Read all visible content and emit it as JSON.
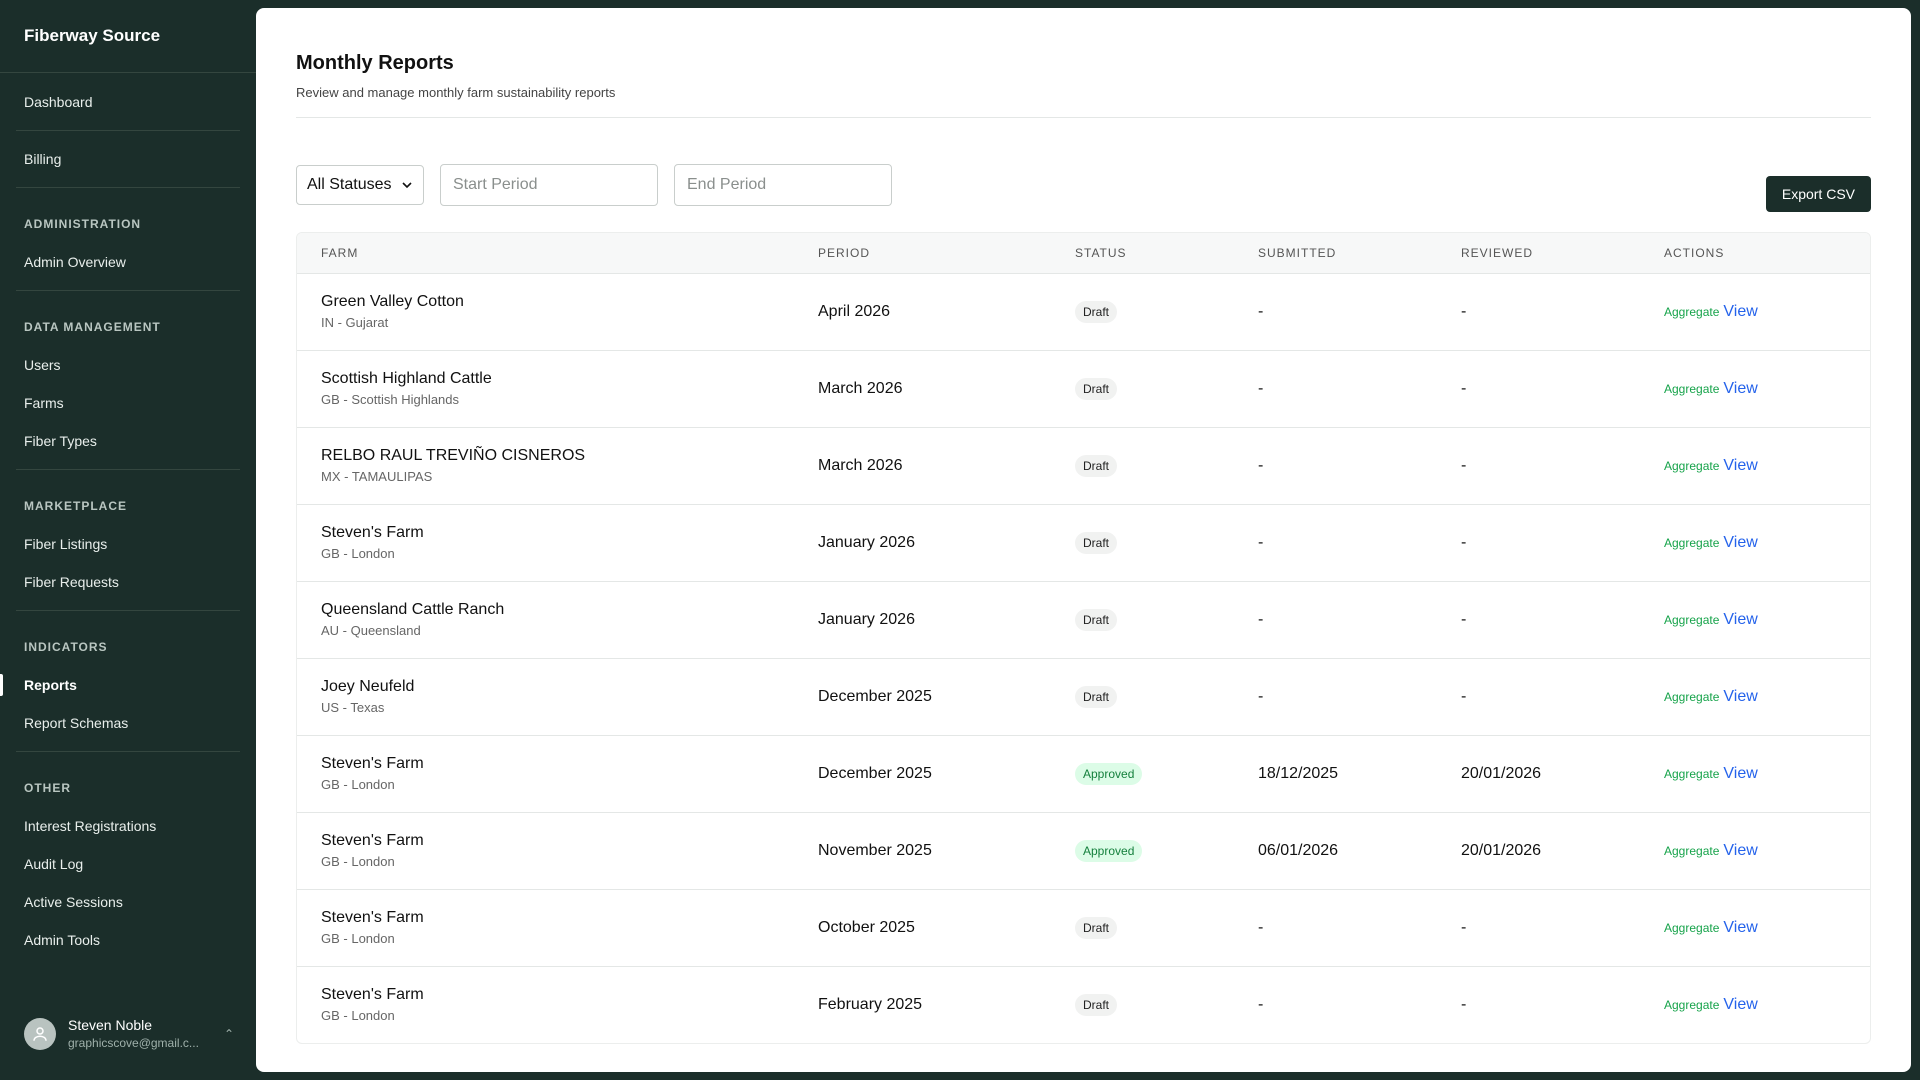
{
  "brand": "Fiberway Source",
  "nav": {
    "top": [
      {
        "label": "Dashboard"
      },
      {
        "label": "Billing"
      }
    ],
    "sections": [
      {
        "heading": "ADMINISTRATION",
        "items": [
          {
            "label": "Admin Overview"
          }
        ]
      },
      {
        "heading": "DATA MANAGEMENT",
        "items": [
          {
            "label": "Users"
          },
          {
            "label": "Farms"
          },
          {
            "label": "Fiber Types"
          }
        ]
      },
      {
        "heading": "MARKETPLACE",
        "items": [
          {
            "label": "Fiber Listings"
          },
          {
            "label": "Fiber Requests"
          }
        ]
      },
      {
        "heading": "INDICATORS",
        "items": [
          {
            "label": "Reports",
            "active": true
          },
          {
            "label": "Report Schemas"
          }
        ]
      },
      {
        "heading": "OTHER",
        "items": [
          {
            "label": "Interest Registrations"
          },
          {
            "label": "Audit Log"
          },
          {
            "label": "Active Sessions"
          },
          {
            "label": "Admin Tools"
          }
        ]
      }
    ]
  },
  "user": {
    "name": "Steven Noble",
    "email": "graphicscove@gmail.c..."
  },
  "page": {
    "title": "Monthly Reports",
    "subtitle": "Review and manage monthly farm sustainability reports"
  },
  "filters": {
    "status_value": "All Statuses",
    "start_placeholder": "Start Period",
    "end_placeholder": "End Period",
    "export_label": "Export CSV"
  },
  "table": {
    "columns": [
      "FARM",
      "PERIOD",
      "STATUS",
      "SUBMITTED",
      "REVIEWED",
      "ACTIONS"
    ],
    "aggregate_label": "Aggregate",
    "view_label": "View",
    "rows": [
      {
        "farm": "Green Valley Cotton",
        "location": "IN - Gujarat",
        "period": "April 2026",
        "status": "Draft",
        "submitted": "-",
        "reviewed": "-"
      },
      {
        "farm": "Scottish Highland Cattle",
        "location": "GB - Scottish Highlands",
        "period": "March 2026",
        "status": "Draft",
        "submitted": "-",
        "reviewed": "-"
      },
      {
        "farm": "RELBO RAUL TREVIÑO CISNEROS",
        "location": "MX - TAMAULIPAS",
        "period": "March 2026",
        "status": "Draft",
        "submitted": "-",
        "reviewed": "-"
      },
      {
        "farm": "Steven's Farm",
        "location": "GB - London",
        "period": "January 2026",
        "status": "Draft",
        "submitted": "-",
        "reviewed": "-"
      },
      {
        "farm": "Queensland Cattle Ranch",
        "location": "AU - Queensland",
        "period": "January 2026",
        "status": "Draft",
        "submitted": "-",
        "reviewed": "-"
      },
      {
        "farm": "Joey Neufeld",
        "location": "US - Texas",
        "period": "December 2025",
        "status": "Draft",
        "submitted": "-",
        "reviewed": "-"
      },
      {
        "farm": "Steven's Farm",
        "location": "GB - London",
        "period": "December 2025",
        "status": "Approved",
        "submitted": "18/12/2025",
        "reviewed": "20/01/2026"
      },
      {
        "farm": "Steven's Farm",
        "location": "GB - London",
        "period": "November 2025",
        "status": "Approved",
        "submitted": "06/01/2026",
        "reviewed": "20/01/2026"
      },
      {
        "farm": "Steven's Farm",
        "location": "GB - London",
        "period": "October 2025",
        "status": "Draft",
        "submitted": "-",
        "reviewed": "-"
      },
      {
        "farm": "Steven's Farm",
        "location": "GB - London",
        "period": "February 2025",
        "status": "Draft",
        "submitted": "-",
        "reviewed": "-"
      }
    ]
  }
}
